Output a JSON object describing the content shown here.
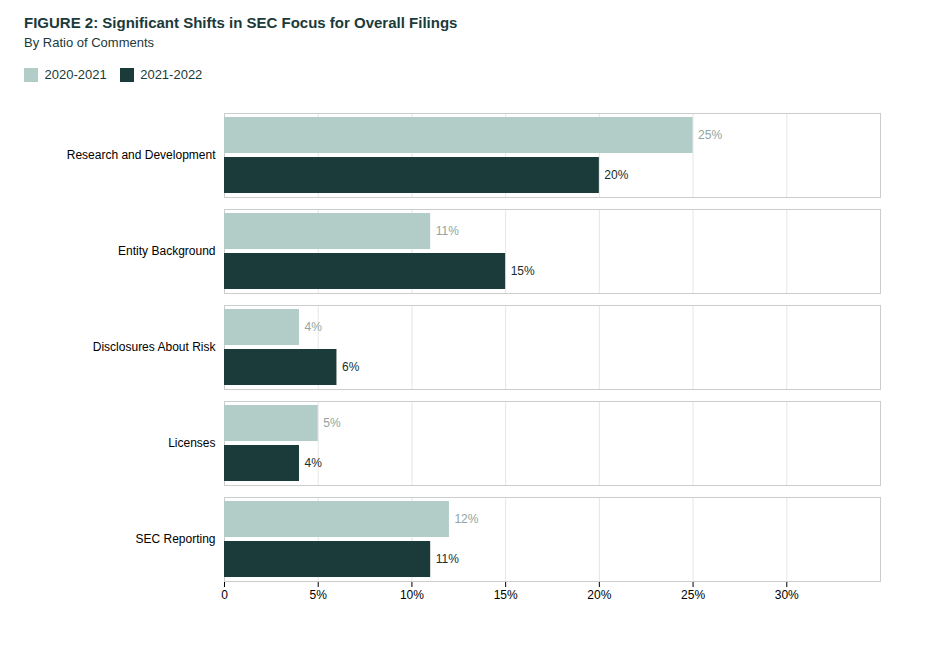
{
  "chart_data": {
    "type": "bar",
    "orientation": "horizontal",
    "title": "FIGURE 2: Significant Shifts in SEC Focus for Overall Filings",
    "subtitle": "By Ratio of Comments",
    "categories": [
      "Research and Development",
      "Entity Background",
      "Disclosures About Risk",
      "Licenses",
      "SEC Reporting"
    ],
    "series": [
      {
        "name": "2020-2021",
        "color": "#b2ccc8",
        "values": [
          25,
          11,
          4,
          5,
          12
        ],
        "value_labels": [
          "25%",
          "11%",
          "4%",
          "5%",
          "12%"
        ]
      },
      {
        "name": "2021-2022",
        "color": "#1b3a3a",
        "values": [
          20,
          15,
          6,
          4,
          11
        ],
        "value_labels": [
          "20%",
          "15%",
          "6%",
          "4%",
          "11%"
        ]
      }
    ],
    "xlim": [
      0,
      35
    ],
    "xticks": [
      0,
      {
        "value": 5,
        "label": "5%"
      },
      {
        "value": 10,
        "label": "10%"
      },
      {
        "value": 15,
        "label": "15%"
      },
      {
        "value": 20,
        "label": "20%"
      },
      {
        "value": 25,
        "label": "25%"
      },
      {
        "value": 30,
        "label": "30%"
      }
    ],
    "grid": true,
    "legend": "top-left",
    "data_labels": true
  }
}
